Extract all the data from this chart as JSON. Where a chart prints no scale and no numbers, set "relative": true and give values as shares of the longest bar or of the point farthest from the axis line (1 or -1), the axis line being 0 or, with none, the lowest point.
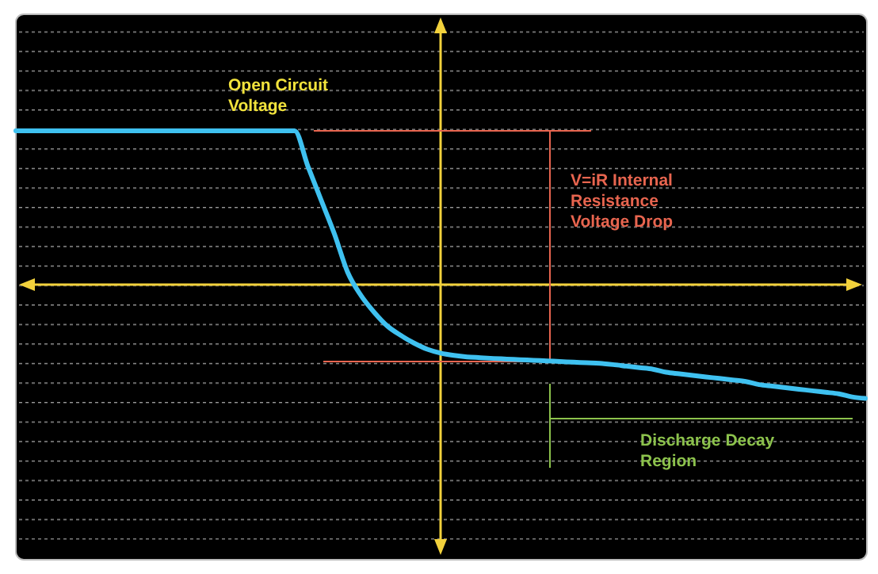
{
  "chart_data": {
    "type": "line",
    "relative": true,
    "ref_lines": [
      {
        "axis": "y",
        "value": 0,
        "color": "#f2d13c"
      }
    ],
    "marker": "none",
    "line_style": "solid",
    "categories": [
      null,
      null,
      null,
      null,
      null,
      null,
      null,
      null,
      null,
      null,
      null,
      null,
      null,
      null,
      null,
      null,
      null,
      null,
      null,
      null,
      null,
      null,
      null,
      null,
      null,
      null,
      null,
      null,
      null,
      null,
      null,
      null,
      null,
      null,
      null,
      null,
      null,
      null,
      null,
      null,
      null,
      null,
      null,
      null,
      null,
      null,
      null,
      null,
      null,
      null,
      null,
      null,
      null,
      null,
      null,
      null,
      null,
      null,
      null,
      null,
      null,
      null,
      null,
      null,
      null
    ],
    "series": [
      {
        "color": "#3fc1f0",
        "values": [
          1,
          1,
          1,
          1,
          1,
          1,
          1,
          1,
          1,
          1,
          1,
          1,
          1,
          1,
          1,
          1,
          1,
          1,
          1,
          1,
          1,
          1,
          0.77,
          0.55,
          0.33,
          0.08,
          -0.07,
          -0.18,
          -0.27,
          -0.33,
          -0.38,
          -0.42,
          -0.445,
          -0.46,
          -0.47,
          -0.475,
          -0.48,
          -0.484,
          -0.488,
          -0.492,
          -0.496,
          -0.5,
          -0.504,
          -0.508,
          -0.512,
          -0.52,
          -0.53,
          -0.54,
          -0.55,
          -0.57,
          -0.58,
          -0.59,
          -0.6,
          -0.61,
          -0.62,
          -0.63,
          -0.65,
          -0.66,
          -0.67,
          -0.68,
          -0.69,
          -0.7,
          -0.71,
          -0.73,
          -0.74
        ]
      }
    ],
    "annotations": [
      "Open Circuit Voltage",
      "V=iR Internal Resistance Voltage Drop",
      "Discharge Decay Region"
    ]
  }
}
